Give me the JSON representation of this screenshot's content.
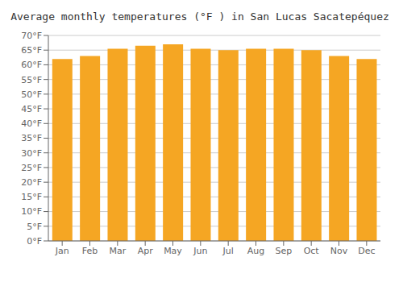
{
  "chart_data": {
    "type": "bar",
    "title": "Average monthly temperatures (°F ) in San Lucas Sacatepéquez",
    "categories": [
      "Jan",
      "Feb",
      "Mar",
      "Apr",
      "May",
      "Jun",
      "Jul",
      "Aug",
      "Sep",
      "Oct",
      "Nov",
      "Dec"
    ],
    "values": [
      62.0,
      63.0,
      65.5,
      66.5,
      67.0,
      65.5,
      65.0,
      65.5,
      65.5,
      65.0,
      63.0,
      62.0
    ],
    "color": "#F5A623",
    "ylim": [
      0,
      70
    ],
    "yticks": [
      {
        "value": 0,
        "label": "0°F"
      },
      {
        "value": 5,
        "label": "5°F"
      },
      {
        "value": 10,
        "label": "10°F"
      },
      {
        "value": 15,
        "label": "15°F"
      },
      {
        "value": 20,
        "label": "20°F"
      },
      {
        "value": 25,
        "label": "25°F"
      },
      {
        "value": 30,
        "label": "30°F"
      },
      {
        "value": 35,
        "label": "35°F"
      },
      {
        "value": 40,
        "label": "40°F"
      },
      {
        "value": 45,
        "label": "45°F"
      },
      {
        "value": 50,
        "label": "50°F"
      },
      {
        "value": 55,
        "label": "55°F"
      },
      {
        "value": 60,
        "label": "60°F"
      },
      {
        "value": 65,
        "label": "65°F"
      },
      {
        "value": 70,
        "label": "70°F"
      }
    ],
    "grid": true
  }
}
